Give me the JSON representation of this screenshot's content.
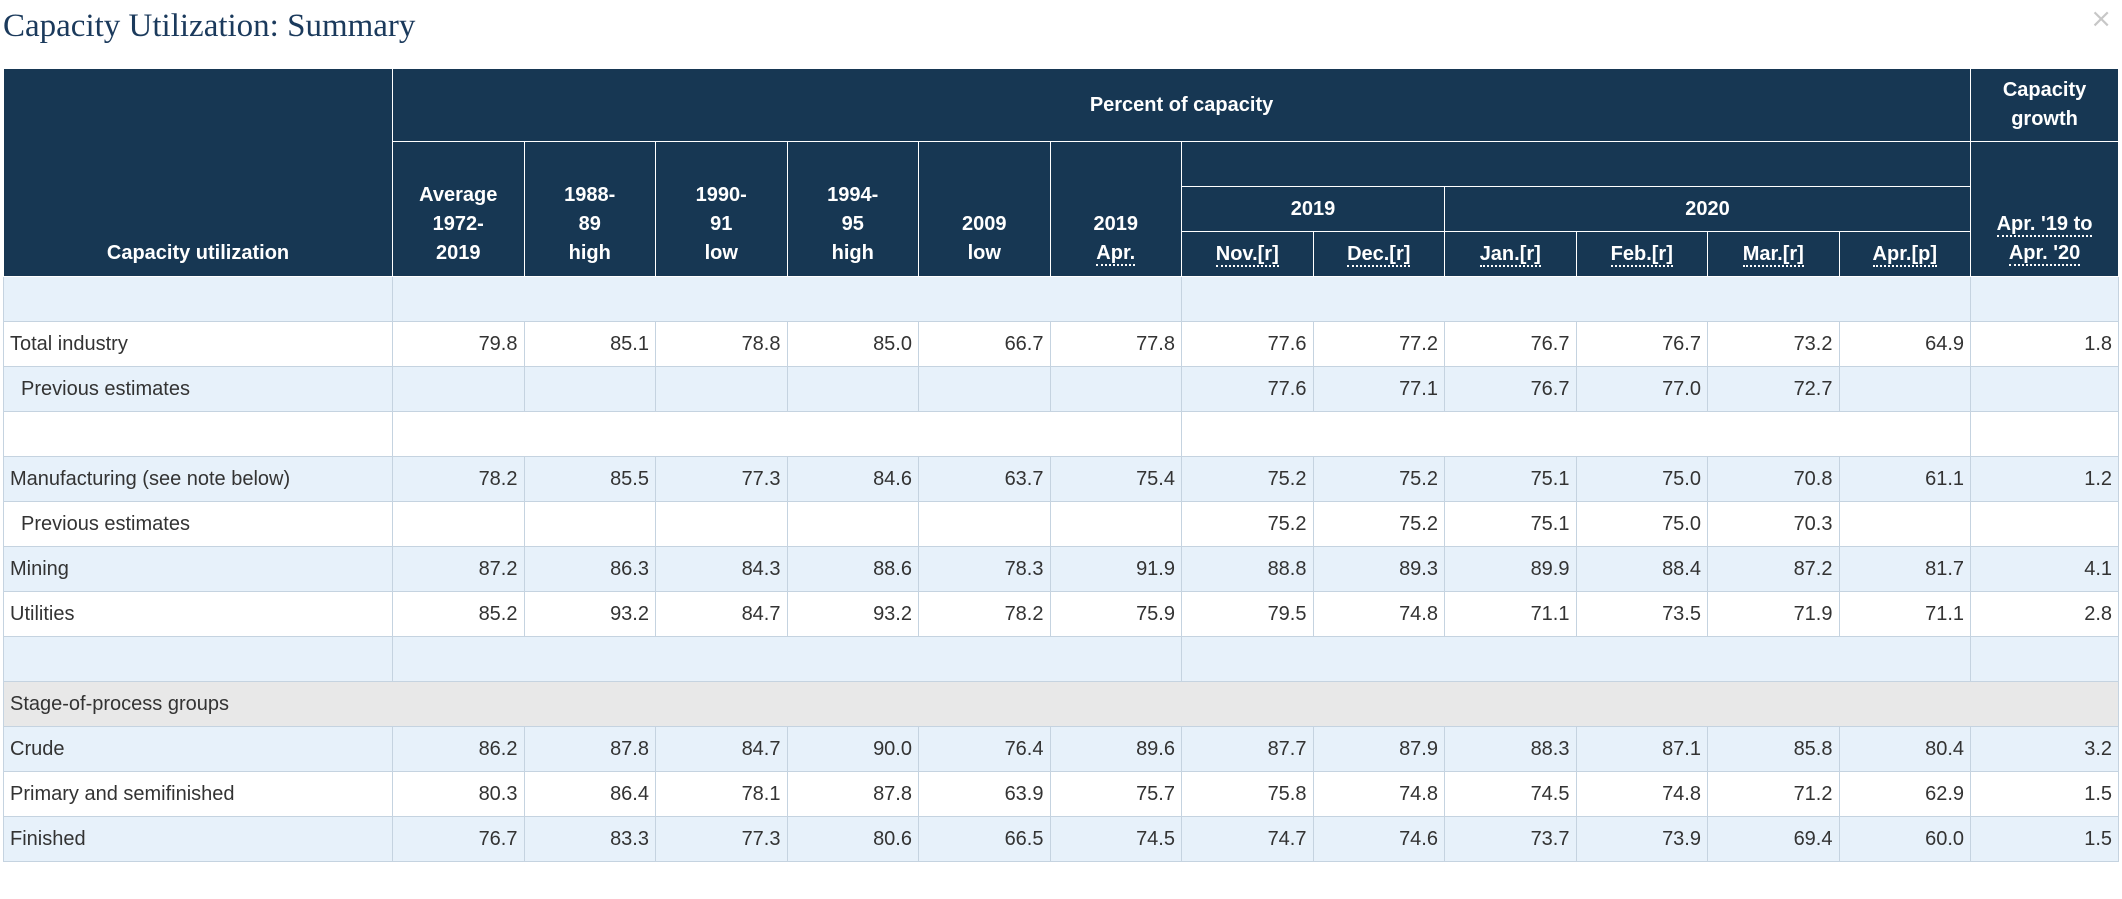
{
  "window": {
    "title": "Capacity Utilization: Summary",
    "close_glyph": "×"
  },
  "header": {
    "row_label": "Capacity utilization",
    "percent_of_capacity": "Percent of capacity",
    "capacity_growth": "Capacity growth",
    "col_average": [
      "Average",
      "1972-",
      "2019"
    ],
    "col_1988": [
      "1988-",
      "89",
      "high"
    ],
    "col_1990": [
      "1990-",
      "91",
      "low"
    ],
    "col_1994": [
      "1994-",
      "95",
      "high"
    ],
    "col_2009": [
      "2009",
      "low"
    ],
    "col_2019apr": [
      "2019",
      "Apr."
    ],
    "year_2019": "2019",
    "year_2020": "2020",
    "months": [
      "Nov.[r]",
      "Dec.[r]",
      "Jan.[r]",
      "Feb.[r]",
      "Mar.[r]",
      "Apr.[p]"
    ],
    "growth_sub": [
      "Apr. '19 to",
      "Apr. '20"
    ]
  },
  "rows": [
    {
      "label": "Total industry",
      "values": [
        "79.8",
        "85.1",
        "78.8",
        "85.0",
        "66.7",
        "77.8",
        "77.6",
        "77.2",
        "76.7",
        "76.7",
        "73.2",
        "64.9",
        "1.8"
      ]
    },
    {
      "label": "Previous estimates",
      "values": [
        "",
        "",
        "",
        "",
        "",
        "",
        "77.6",
        "77.1",
        "76.7",
        "77.0",
        "72.7",
        "",
        ""
      ]
    },
    {
      "label": "Manufacturing (see note below)",
      "values": [
        "78.2",
        "85.5",
        "77.3",
        "84.6",
        "63.7",
        "75.4",
        "75.2",
        "75.2",
        "75.1",
        "75.0",
        "70.8",
        "61.1",
        "1.2"
      ]
    },
    {
      "label": "Previous estimates",
      "values": [
        "",
        "",
        "",
        "",
        "",
        "",
        "75.2",
        "75.2",
        "75.1",
        "75.0",
        "70.3",
        "",
        ""
      ]
    },
    {
      "label": "Mining",
      "values": [
        "87.2",
        "86.3",
        "84.3",
        "88.6",
        "78.3",
        "91.9",
        "88.8",
        "89.3",
        "89.9",
        "88.4",
        "87.2",
        "81.7",
        "4.1"
      ]
    },
    {
      "label": "Utilities",
      "values": [
        "85.2",
        "93.2",
        "84.7",
        "93.2",
        "78.2",
        "75.9",
        "79.5",
        "74.8",
        "71.1",
        "73.5",
        "71.9",
        "71.1",
        "2.8"
      ]
    },
    {
      "label": "Stage-of-process groups"
    },
    {
      "label": "Crude",
      "values": [
        "86.2",
        "87.8",
        "84.7",
        "90.0",
        "76.4",
        "89.6",
        "87.7",
        "87.9",
        "88.3",
        "87.1",
        "85.8",
        "80.4",
        "3.2"
      ]
    },
    {
      "label": "Primary and semifinished",
      "values": [
        "80.3",
        "86.4",
        "78.1",
        "87.8",
        "63.9",
        "75.7",
        "75.8",
        "74.8",
        "74.5",
        "74.8",
        "71.2",
        "62.9",
        "1.5"
      ]
    },
    {
      "label": "Finished",
      "values": [
        "76.7",
        "83.3",
        "77.3",
        "80.6",
        "66.5",
        "74.5",
        "74.7",
        "74.6",
        "73.7",
        "73.9",
        "69.4",
        "60.0",
        "1.5"
      ]
    }
  ],
  "colors": {
    "header_bg": "#173753",
    "row_blue": "#e7f1fa",
    "row_gray": "#e8e8e8",
    "title": "#1b3a5c"
  }
}
